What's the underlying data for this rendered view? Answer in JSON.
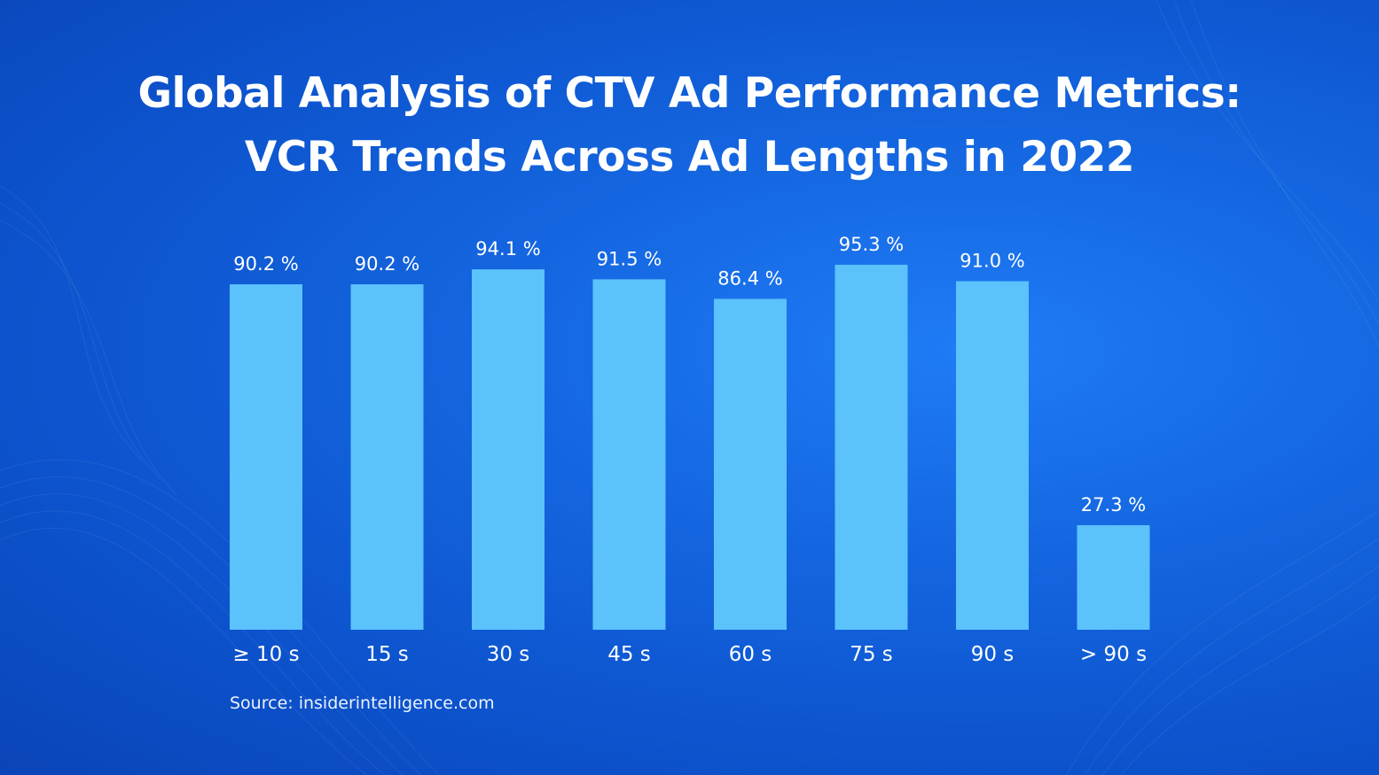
{
  "title_line1": "Global Analysis of CTV Ad Performance Metrics:",
  "title_line2": "VCR Trends Across Ad Lengths in 2022",
  "source": "Source: insiderintelligence.com",
  "colors": {
    "bar": "#5bc2fb",
    "text": "#ffffff"
  },
  "chart_data": {
    "type": "bar",
    "categories": [
      "≥ 10 s",
      "15 s",
      "30 s",
      "45 s",
      "60 s",
      "75 s",
      "90 s",
      "> 90 s"
    ],
    "values": [
      90.2,
      90.2,
      94.1,
      91.5,
      86.4,
      95.3,
      91.0,
      27.3
    ],
    "data_labels": [
      "90.2 %",
      "90.2 %",
      "94.1 %",
      "91.5 %",
      "86.4 %",
      "95.3 %",
      "91.0 %",
      "27.3 %"
    ],
    "ylim": [
      0,
      100
    ],
    "grid": false,
    "legend": "none"
  }
}
